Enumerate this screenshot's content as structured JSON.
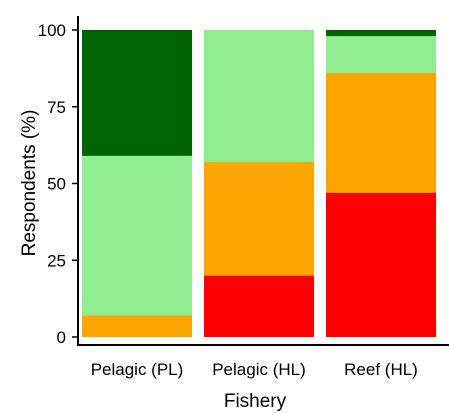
{
  "chart_data": {
    "type": "bar",
    "stacked": true,
    "categories": [
      "Pelagic (PL)",
      "Pelagic (HL)",
      "Reef (HL)"
    ],
    "series": [
      {
        "color": "#ff0000",
        "values": [
          0,
          20,
          47
        ]
      },
      {
        "color": "#ffa500",
        "values": [
          7,
          37,
          39
        ]
      },
      {
        "color": "#90ee90",
        "values": [
          52,
          43,
          12
        ]
      },
      {
        "color": "#006400",
        "values": [
          41,
          0,
          2
        ]
      }
    ],
    "xlabel": "Fishery",
    "ylabel": "Respondents (%)",
    "yticks": [
      0,
      25,
      50,
      75,
      100
    ],
    "ylim": [
      0,
      100
    ],
    "grid": false,
    "legend": "none"
  }
}
